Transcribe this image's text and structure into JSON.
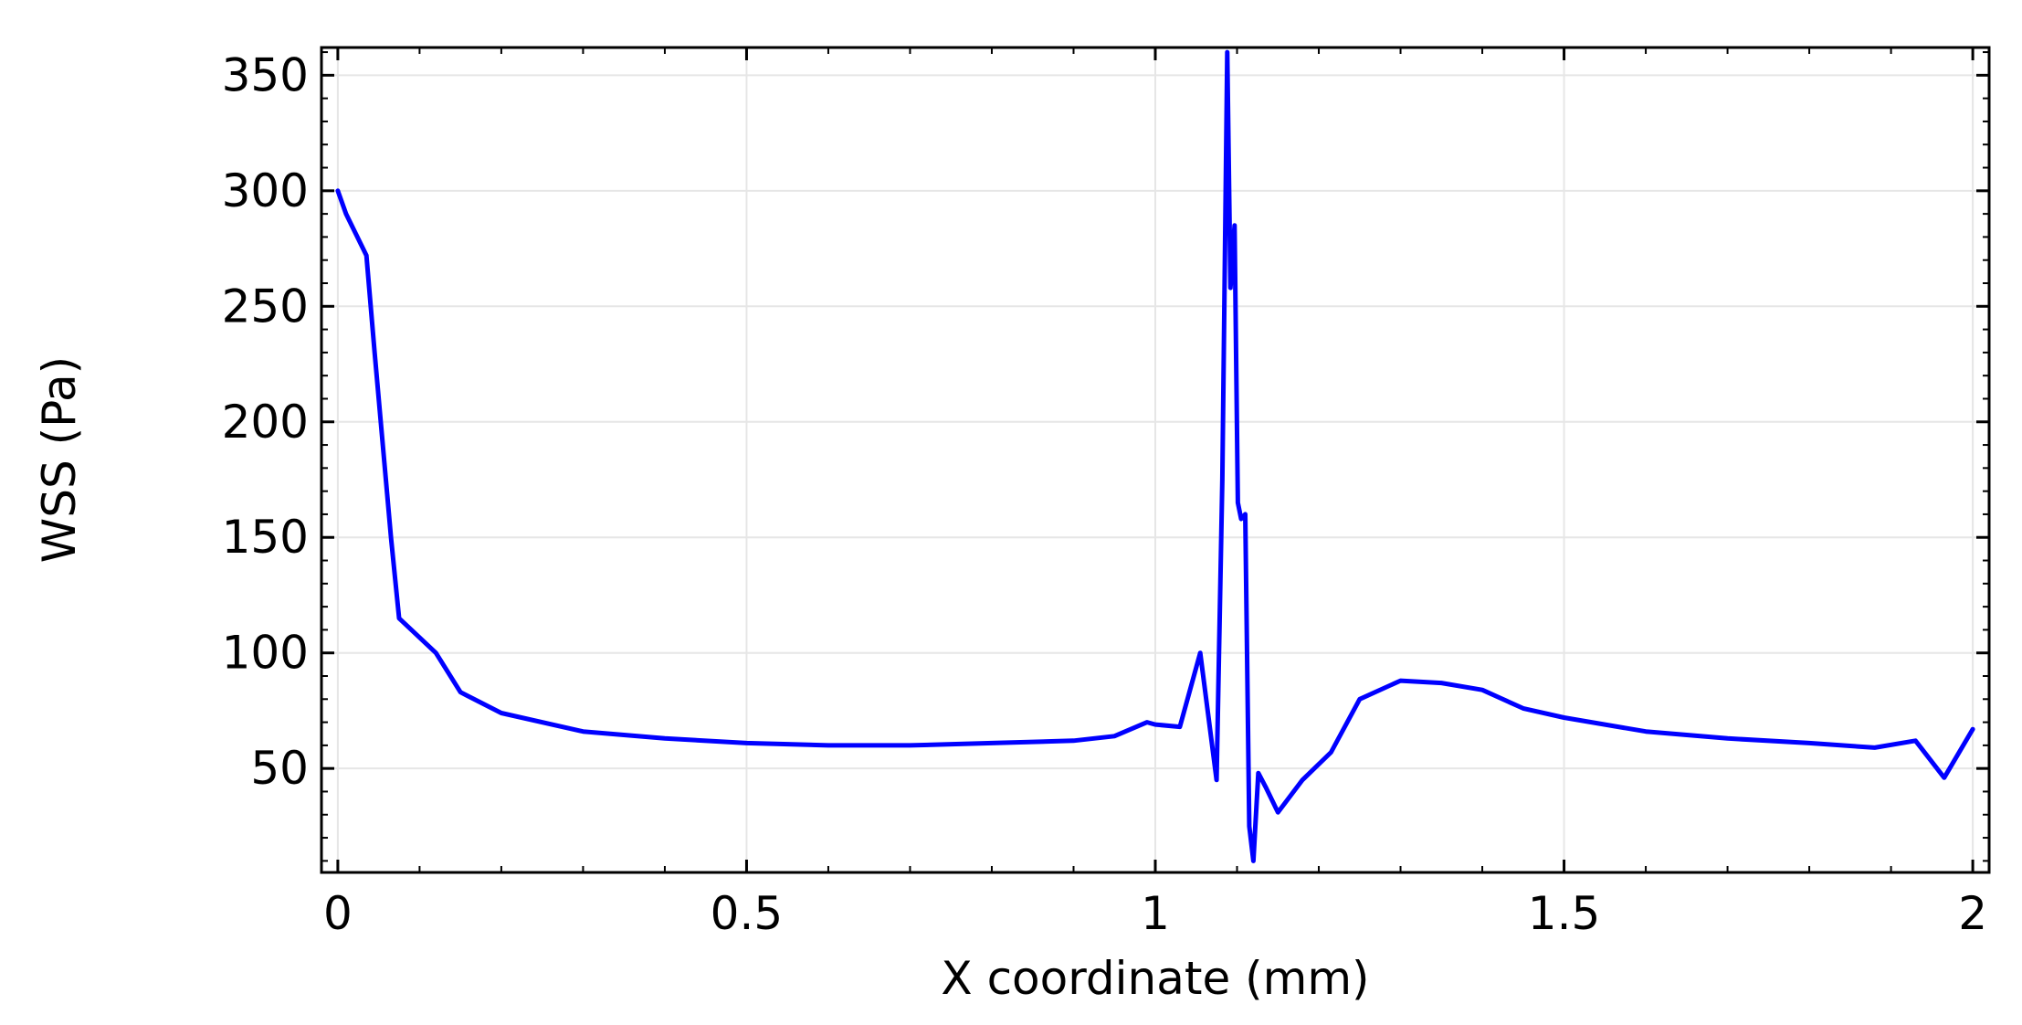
{
  "chart_data": {
    "type": "line",
    "xlabel": "X coordinate (mm)",
    "ylabel": "WSS (Pa)",
    "xlim": [
      -0.02,
      2.02
    ],
    "ylim": [
      5,
      362
    ],
    "x_ticks": [
      {
        "value": 0,
        "label": "0"
      },
      {
        "value": 0.5,
        "label": "0.5"
      },
      {
        "value": 1,
        "label": "1"
      },
      {
        "value": 1.5,
        "label": "1.5"
      },
      {
        "value": 2,
        "label": "2"
      }
    ],
    "y_ticks": [
      {
        "value": 50,
        "label": "50"
      },
      {
        "value": 100,
        "label": "100"
      },
      {
        "value": 150,
        "label": "150"
      },
      {
        "value": 200,
        "label": "200"
      },
      {
        "value": 250,
        "label": "250"
      },
      {
        "value": 300,
        "label": "300"
      },
      {
        "value": 350,
        "label": "350"
      }
    ],
    "grid": true,
    "series_color": "#0000ff",
    "series": [
      {
        "x": [
          0,
          0.01,
          0.035,
          0.045,
          0.065,
          0.075,
          0.12,
          0.15,
          0.2,
          0.3,
          0.4,
          0.5,
          0.6,
          0.7,
          0.8,
          0.9,
          0.95,
          0.99,
          1.0,
          1.03,
          1.055,
          1.075,
          1.082,
          1.088,
          1.092,
          1.097,
          1.101,
          1.105,
          1.11,
          1.115,
          1.12,
          1.126,
          1.135,
          1.15,
          1.18,
          1.215,
          1.25,
          1.3,
          1.35,
          1.4,
          1.45,
          1.5,
          1.6,
          1.7,
          1.8,
          1.88,
          1.93,
          1.965,
          2.0
        ],
        "y": [
          300,
          290,
          272,
          230,
          150,
          115,
          100,
          83,
          74,
          66,
          63,
          61,
          60,
          60,
          61,
          62,
          64,
          70,
          69,
          68,
          100,
          45,
          175,
          360,
          258,
          285,
          165,
          158,
          160,
          25,
          10,
          48,
          42,
          31,
          45,
          57,
          80,
          88,
          87,
          84,
          76,
          72,
          66,
          63,
          61,
          59,
          62,
          46,
          67
        ]
      }
    ]
  }
}
